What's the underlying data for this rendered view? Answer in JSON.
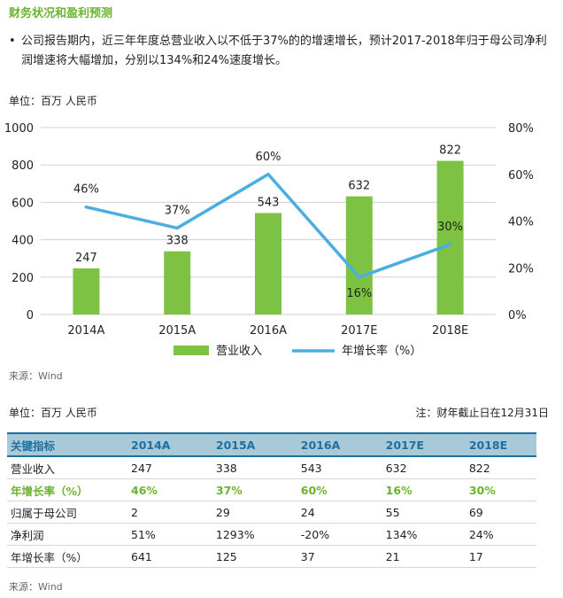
{
  "title": "财务状况和盈利预测",
  "bullet_text": "公司报告期内，近三年年度总营业收入以不低于37%的的增速增长，预计2017-2018年归于母公司净利润增速将大幅增加，分别以134%和24%速度增长。",
  "unit_label": "单位：百万 人民币",
  "source_label": "来源：Wind",
  "note_label": "注：财年截止日在12月31日",
  "colors": {
    "bar": "#7dc242",
    "line": "#4aaee3",
    "accent": "#6ab42d",
    "table_header_bg": "#a8c9d8",
    "table_header_text": "#1f6fa0"
  },
  "chart_data": {
    "type": "bar",
    "categories": [
      "2014A",
      "2015A",
      "2016A",
      "2017E",
      "2018E"
    ],
    "series": [
      {
        "name": "营业收入",
        "kind": "bar",
        "axis": "left",
        "values": [
          247,
          338,
          543,
          632,
          822
        ],
        "labels": [
          "247",
          "338",
          "543",
          "632",
          "822"
        ]
      },
      {
        "name": "年增长率（%）",
        "kind": "line",
        "axis": "right",
        "values": [
          46,
          37,
          60,
          16,
          30
        ],
        "labels": [
          "46%",
          "37%",
          "60%",
          "16%",
          "30%"
        ]
      }
    ],
    "ylim_left": [
      0,
      1000
    ],
    "yticks_left": [
      0,
      200,
      400,
      600,
      800,
      1000
    ],
    "ylim_right": [
      0,
      80
    ],
    "yticks_right": [
      0,
      20,
      40,
      60,
      80
    ],
    "ytick_right_labels": [
      "0%",
      "20%",
      "40%",
      "60%",
      "80%"
    ],
    "grid": true,
    "legend": "bottom-center"
  },
  "table": {
    "headers": [
      "关键指标",
      "2014A",
      "2015A",
      "2016A",
      "2017E",
      "2018E"
    ],
    "rows": [
      {
        "cells": [
          "营业收入",
          "247",
          "338",
          "543",
          "632",
          "822"
        ],
        "highlight": false
      },
      {
        "cells": [
          "年增长率（%）",
          "46%",
          "37%",
          "60%",
          "16%",
          "30%"
        ],
        "highlight": true
      },
      {
        "cells": [
          "归属于母公司",
          "2",
          "29",
          "24",
          "55",
          "69"
        ],
        "highlight": false
      },
      {
        "cells": [
          "净利润",
          "51%",
          "1293%",
          "-20%",
          "134%",
          "24%"
        ],
        "highlight": false
      },
      {
        "cells": [
          "年增长率（%）",
          "641",
          "125",
          "37",
          "21",
          "17"
        ],
        "highlight": false
      }
    ]
  }
}
